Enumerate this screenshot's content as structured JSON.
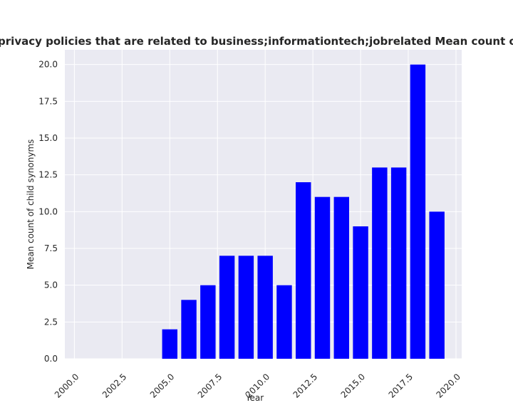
{
  "chart_data": {
    "type": "bar",
    "title": "Mean count of child synonyms in privacy policies that are related to business;informationtech;jobrelated Mean count of child synonyms in privacy policies",
    "xlabel": "Year",
    "ylabel": "Mean count of child synonyms",
    "x": [
      2005,
      2006,
      2007,
      2008,
      2009,
      2010,
      2011,
      2012,
      2013,
      2014,
      2015,
      2016,
      2017,
      2018,
      2019
    ],
    "values": [
      2,
      4,
      5,
      7,
      7,
      7,
      5,
      12,
      11,
      11,
      9,
      13,
      13,
      20,
      10
    ],
    "xlim": [
      1999.5,
      2020.3
    ],
    "ylim": [
      0,
      21
    ],
    "xticks": [
      "2000.0",
      "2002.5",
      "2005.0",
      "2007.5",
      "2010.0",
      "2012.5",
      "2015.0",
      "2017.5",
      "2020.0"
    ],
    "yticks": [
      "0.0",
      "2.5",
      "5.0",
      "7.5",
      "10.0",
      "12.5",
      "15.0",
      "17.5",
      "20.0"
    ],
    "grid": true,
    "bar_color": "#0000ff",
    "background_color": "#eaeaf2"
  }
}
